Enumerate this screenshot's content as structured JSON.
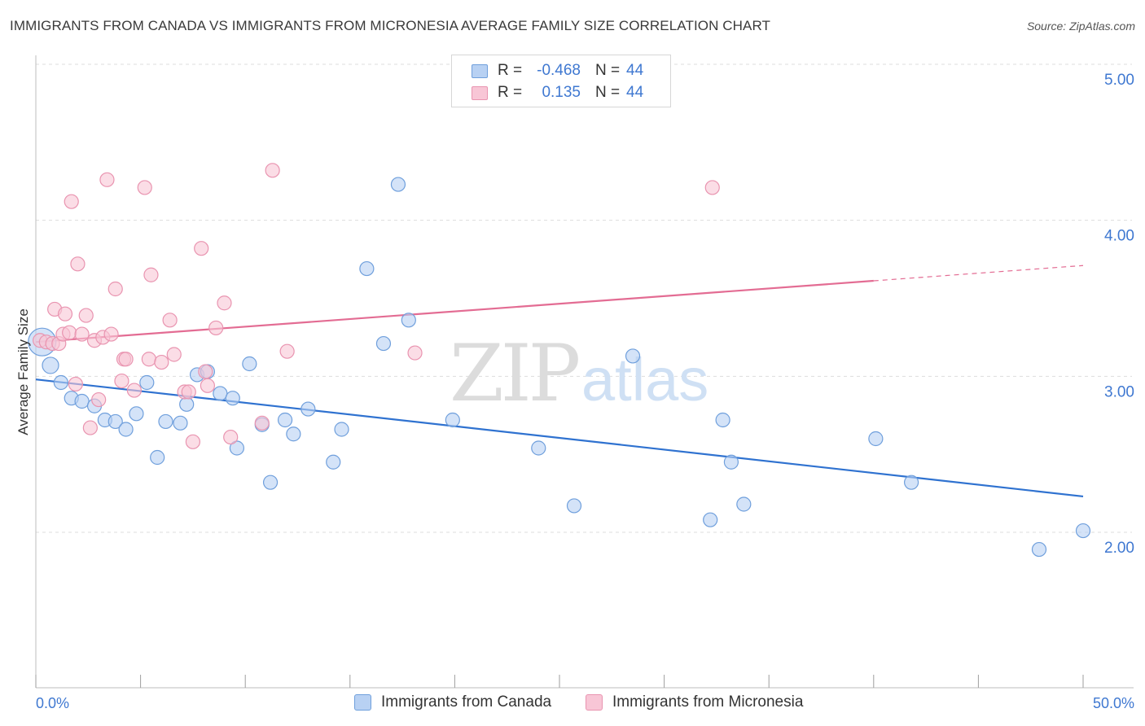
{
  "title": "IMMIGRANTS FROM CANADA VS IMMIGRANTS FROM MICRONESIA AVERAGE FAMILY SIZE CORRELATION CHART",
  "source": "Source: ZipAtlas.com",
  "watermark": {
    "zip": "ZIP",
    "atlas": "atlas"
  },
  "legend": {
    "rows": [
      {
        "r_label": "R =",
        "r_value": "-0.468",
        "n_label": "N =",
        "n_value": "44"
      },
      {
        "r_label": "R =",
        "r_value": "0.135",
        "n_label": "N =",
        "n_value": "44"
      }
    ]
  },
  "colors": {
    "canada_fill": "#b8d1f3",
    "canada_stroke": "#6f9fdc",
    "canada_line": "#2f72d0",
    "micronesia_fill": "#f8c6d6",
    "micronesia_stroke": "#e994b0",
    "micronesia_line": "#e36c93",
    "axis_value": "#3f78d1",
    "grid": "#dddddd"
  },
  "chart_data": {
    "type": "scatter",
    "title": "IMMIGRANTS FROM CANADA VS IMMIGRANTS FROM MICRONESIA AVERAGE FAMILY SIZE CORRELATION CHART",
    "xlabel": "",
    "ylabel": "Average Family Size",
    "xlim": [
      0,
      50
    ],
    "ylim": [
      1.0,
      5.1
    ],
    "x_tick_labels": [
      "0.0%",
      "50.0%"
    ],
    "y_ticks": [
      2.0,
      3.0,
      4.0,
      5.0
    ],
    "y_tick_labels": [
      "2.00",
      "3.00",
      "4.00",
      "5.00"
    ],
    "grid": true,
    "legend_position": "bottom",
    "series": [
      {
        "name": "Immigrants from Canada",
        "points": [
          [
            0.3,
            3.22
          ],
          [
            0.7,
            3.07
          ],
          [
            1.2,
            2.96
          ],
          [
            1.7,
            2.86
          ],
          [
            2.2,
            2.84
          ],
          [
            2.8,
            2.81
          ],
          [
            3.3,
            2.72
          ],
          [
            3.8,
            2.71
          ],
          [
            4.3,
            2.66
          ],
          [
            4.8,
            2.76
          ],
          [
            5.3,
            2.96
          ],
          [
            5.8,
            2.48
          ],
          [
            6.2,
            2.71
          ],
          [
            6.9,
            2.7
          ],
          [
            7.2,
            2.82
          ],
          [
            7.7,
            3.01
          ],
          [
            8.2,
            3.03
          ],
          [
            8.8,
            2.89
          ],
          [
            9.4,
            2.86
          ],
          [
            9.6,
            2.54
          ],
          [
            10.2,
            3.08
          ],
          [
            10.8,
            2.69
          ],
          [
            11.2,
            2.32
          ],
          [
            11.9,
            2.72
          ],
          [
            12.3,
            2.63
          ],
          [
            13.0,
            2.79
          ],
          [
            14.2,
            2.45
          ],
          [
            14.6,
            2.66
          ],
          [
            15.8,
            3.69
          ],
          [
            16.6,
            3.21
          ],
          [
            17.3,
            4.23
          ],
          [
            17.8,
            3.36
          ],
          [
            19.9,
            2.72
          ],
          [
            24.0,
            2.54
          ],
          [
            25.7,
            2.17
          ],
          [
            28.5,
            3.13
          ],
          [
            32.2,
            2.08
          ],
          [
            32.8,
            2.72
          ],
          [
            33.2,
            2.45
          ],
          [
            33.8,
            2.18
          ],
          [
            40.1,
            2.6
          ],
          [
            41.8,
            2.32
          ],
          [
            47.9,
            1.89
          ],
          [
            50.0,
            2.01
          ]
        ],
        "trend": {
          "x": [
            0,
            50
          ],
          "y": [
            2.98,
            2.23
          ],
          "dashed_from": null
        }
      },
      {
        "name": "Immigrants from Micronesia",
        "points": [
          [
            0.2,
            3.23
          ],
          [
            0.5,
            3.22
          ],
          [
            0.8,
            3.21
          ],
          [
            0.9,
            3.43
          ],
          [
            1.1,
            3.21
          ],
          [
            1.3,
            3.27
          ],
          [
            1.4,
            3.4
          ],
          [
            1.6,
            3.28
          ],
          [
            1.7,
            4.12
          ],
          [
            1.9,
            2.95
          ],
          [
            2.0,
            3.72
          ],
          [
            2.2,
            3.27
          ],
          [
            2.4,
            3.39
          ],
          [
            2.6,
            2.67
          ],
          [
            2.8,
            3.23
          ],
          [
            3.0,
            2.85
          ],
          [
            3.2,
            3.25
          ],
          [
            3.4,
            4.26
          ],
          [
            3.6,
            3.27
          ],
          [
            3.8,
            3.56
          ],
          [
            4.1,
            2.97
          ],
          [
            4.2,
            3.11
          ],
          [
            4.3,
            3.11
          ],
          [
            4.7,
            2.91
          ],
          [
            5.2,
            4.21
          ],
          [
            5.4,
            3.11
          ],
          [
            5.5,
            3.65
          ],
          [
            6.0,
            3.09
          ],
          [
            6.4,
            3.36
          ],
          [
            6.6,
            3.14
          ],
          [
            7.1,
            2.9
          ],
          [
            7.3,
            2.9
          ],
          [
            7.5,
            2.58
          ],
          [
            7.9,
            3.82
          ],
          [
            8.1,
            3.03
          ],
          [
            8.2,
            2.94
          ],
          [
            8.6,
            3.31
          ],
          [
            9.0,
            3.47
          ],
          [
            9.3,
            2.61
          ],
          [
            10.8,
            2.7
          ],
          [
            11.3,
            4.32
          ],
          [
            12.0,
            3.16
          ],
          [
            18.1,
            3.15
          ],
          [
            32.3,
            4.21
          ]
        ],
        "trend": {
          "x": [
            0,
            50
          ],
          "y": [
            3.22,
            3.71
          ],
          "dashed_from": 40
        }
      }
    ]
  },
  "bottom_legend": [
    {
      "label": "Immigrants from Canada"
    },
    {
      "label": "Immigrants from Micronesia"
    }
  ]
}
